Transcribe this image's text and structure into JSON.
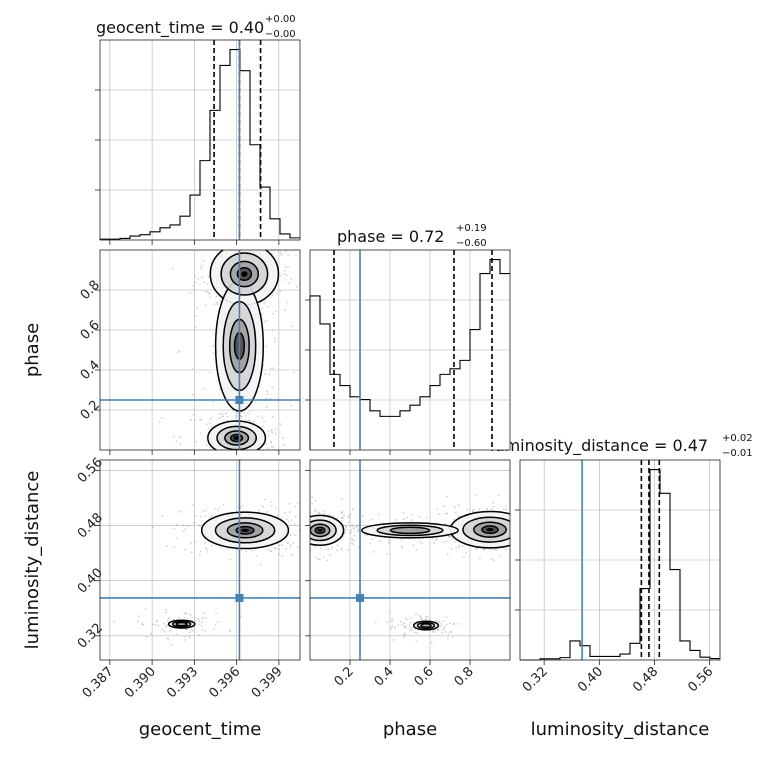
{
  "chart_data": {
    "type": "corner",
    "params": [
      "geocent_time",
      "phase",
      "luminosity_distance"
    ],
    "truths": {
      "geocent_time": 0.3962,
      "phase": 0.25,
      "luminosity_distance": 0.375
    },
    "colors": {
      "truth": "#4682b4",
      "line": "#000000",
      "grid": "#b0b0b0"
    },
    "panels": {
      "geocent_time": {
        "title": "geocent_time = 0.40",
        "title_sup": "+0.00",
        "title_sub": "−0.00",
        "range": [
          0.3863,
          0.4005
        ],
        "xticks": [
          0.387,
          0.39,
          0.393,
          0.396,
          0.399
        ],
        "xtick_labels": [
          "0.387",
          "0.390",
          "0.393",
          "0.396",
          "0.399"
        ],
        "quantiles": [
          0.3944,
          0.3962,
          0.3977
        ],
        "hist": [
          0.3,
          0.3,
          0.6,
          1.5,
          2.0,
          3.1,
          4.6,
          5.7,
          9.0,
          17.0,
          30.0,
          49.0,
          66.0,
          72.0,
          64.0,
          36.0,
          20.0,
          8.0,
          2.3,
          0.8
        ]
      },
      "phase": {
        "title": "phase = 0.72",
        "title_sup": "+0.19",
        "title_sub": "−0.60",
        "range": [
          0.0,
          1.0
        ],
        "xticks": [
          0.2,
          0.4,
          0.6,
          0.8
        ],
        "xtick_labels": [
          "0.2",
          "0.4",
          "0.6",
          "0.8"
        ],
        "yticks": [
          0.2,
          0.4,
          0.6,
          0.8
        ],
        "ytick_labels": [
          "0.2",
          "0.4",
          "0.6",
          "0.8"
        ],
        "quantiles": [
          0.12,
          0.72,
          0.91
        ],
        "hist": [
          110,
          90,
          54,
          46,
          38,
          36,
          28,
          24,
          24,
          28,
          32,
          38,
          46,
          54,
          58,
          64,
          86,
          126,
          136,
          126
        ]
      },
      "luminosity_distance": {
        "title": "luminosity_distance = 0.47",
        "title_sup": "+0.02",
        "title_sub": "−0.01",
        "range": [
          0.285,
          0.575
        ],
        "xticks": [
          0.32,
          0.4,
          0.48,
          0.56
        ],
        "xtick_labels": [
          "0.32",
          "0.40",
          "0.48",
          "0.56"
        ],
        "yticks": [
          0.32,
          0.4,
          0.48,
          0.56
        ],
        "ytick_labels": [
          "0.32",
          "0.40",
          "0.48",
          "0.56"
        ],
        "quantiles": [
          0.461,
          0.472,
          0.487
        ],
        "hist": [
          0,
          0,
          0.5,
          0.5,
          1.0,
          8.0,
          6.0,
          1.5,
          1.5,
          1.5,
          2.5,
          7.0,
          30.0,
          80.0,
          70.0,
          38.0,
          8.0,
          4.0,
          1.2,
          0.6
        ]
      }
    },
    "density_blobs": {
      "phase_vs_geocent_time": [
        {
          "x": 0.39655,
          "y": 0.88,
          "sx": 0.0011,
          "sy": 0.07,
          "w": 1.0
        },
        {
          "x": 0.3962,
          "y": 0.52,
          "sx": 0.0013,
          "sy": 0.25,
          "w": 0.35
        },
        {
          "x": 0.396,
          "y": 0.06,
          "sx": 0.0012,
          "sy": 0.05,
          "w": 0.6
        }
      ],
      "luminosity_distance_vs_geocent_time": [
        {
          "x": 0.3966,
          "y": 0.473,
          "sx": 0.0014,
          "sy": 0.012,
          "w": 1.0
        },
        {
          "x": 0.3921,
          "y": 0.337,
          "sx": 0.001,
          "sy": 0.006,
          "w": 0.18
        }
      ],
      "luminosity_distance_vs_phase": [
        {
          "x": 0.05,
          "y": 0.473,
          "sx": 0.06,
          "sy": 0.011,
          "w": 0.8
        },
        {
          "x": 0.9,
          "y": 0.474,
          "sx": 0.09,
          "sy": 0.012,
          "w": 1.0
        },
        {
          "x": 0.5,
          "y": 0.473,
          "sx": 0.2,
          "sy": 0.009,
          "w": 0.3
        },
        {
          "x": 0.58,
          "y": 0.335,
          "sx": 0.06,
          "sy": 0.006,
          "w": 0.22
        }
      ]
    }
  }
}
